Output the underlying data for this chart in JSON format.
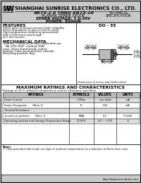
{
  "bg_color": "#c8c8c8",
  "white": "#ffffff",
  "black": "#000000",
  "dark_gray": "#888888",
  "light_gray": "#e8e8e8",
  "company": "SHANGHAI SUNRISE ELECTRONICS CO., LTD.",
  "title_line1": "XR73-2.0 THRU XR73-20",
  "title_line2": "PLANAR ZENER DIODE",
  "title_line3": "ZENER VOLTAGE: 2.0-20V",
  "title_line4": "POWER: 500mW",
  "tech_spec1": "TECHNICAL",
  "tech_spec2": "SPECIFICATION",
  "features_title": "FEATURES",
  "features": [
    "Small glass structure ensures high reliability",
    "Zener impedance at low current is small",
    "High temperature soldering guaranteed:",
    "260°C/10S,5mm lead length",
    "at 5 the tension"
  ],
  "mech_title": "MECHANICAL DATA",
  "mech": [
    "Terminal: Plated solid leads solderable per",
    "   MIL-STD-202F, method 208C",
    "Case: Glass hermetically sealed",
    "Polarity: Color band denotes cathode",
    "Mounting position: Any"
  ],
  "package": "DO - 35",
  "ratings_title": "MAXIMUM RATINGS AND CHARACTERISTICS",
  "ratings_note": "Ratings at 25°C ambient temperature unless otherwise specified.",
  "col_headers": [
    "RATINGS",
    "SYMBOLS",
    "VALUES",
    "UNITS"
  ],
  "rows": [
    [
      "Zener Current",
      "I ZMax",
      "see table",
      "mA"
    ],
    [
      "Power Dissipation       (Note 1)",
      "Pt",
      "500",
      "mW"
    ],
    [
      "Thermal Resistance",
      "",
      "",
      ""
    ],
    [
      "Junction to ambient       (Note 1)",
      "RθJA",
      "0.3",
      "°C/mW"
    ],
    [
      "Operating Junction and Storage Temperature Range",
      "TJ TSTG",
      "-55 ~ +175",
      "°C"
    ]
  ],
  "note": "Note:",
  "note1": "1. Heat provided that leads are kept at ambient temperature at a distance of 8mm from case.",
  "website": "http://www.sun-diode.com",
  "dim_note": "Dimensions in inches and (millimeters)"
}
